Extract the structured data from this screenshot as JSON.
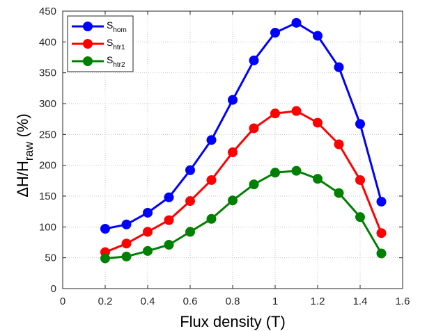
{
  "chart_data": {
    "type": "line",
    "title": "",
    "xlabel": "Flux density (T)",
    "ylabel": {
      "prefix": "ΔH/H",
      "sub": "raw",
      "suffix": " (%)"
    },
    "xlim": [
      0,
      1.6
    ],
    "ylim": [
      0,
      450
    ],
    "xticks": [
      0,
      0.2,
      0.4,
      0.6,
      0.8,
      1,
      1.2,
      1.4,
      1.6
    ],
    "yticks": [
      0,
      50,
      100,
      150,
      200,
      250,
      300,
      350,
      400,
      450
    ],
    "grid": true,
    "legend_position": "top-left",
    "x": [
      0.2,
      0.3,
      0.4,
      0.5,
      0.6,
      0.7,
      0.8,
      0.9,
      1.0,
      1.1,
      1.2,
      1.3,
      1.4,
      1.5
    ],
    "series": [
      {
        "name": {
          "base": "S",
          "sub": "hom"
        },
        "color": "#0000ff",
        "values": [
          97,
          104,
          123,
          148,
          192,
          241,
          306,
          370,
          415,
          431,
          410,
          359,
          267,
          141
        ]
      },
      {
        "name": {
          "base": "S",
          "sub": "htr1"
        },
        "color": "#ff0000",
        "values": [
          59,
          73,
          92,
          111,
          142,
          176,
          221,
          260,
          284,
          288,
          269,
          234,
          176,
          90
        ]
      },
      {
        "name": {
          "base": "S",
          "sub": "htr2"
        },
        "color": "#008000",
        "values": [
          49,
          52,
          61,
          71,
          92,
          113,
          143,
          169,
          188,
          191,
          178,
          155,
          116,
          57
        ]
      }
    ]
  }
}
